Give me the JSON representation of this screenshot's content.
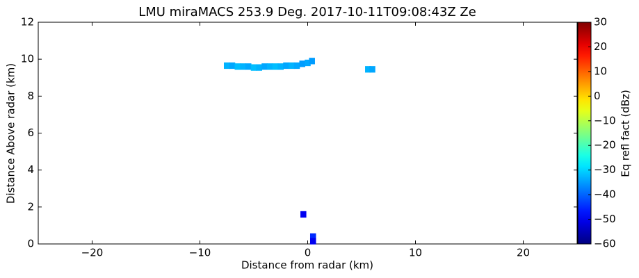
{
  "chart_data": {
    "type": "rhi",
    "title": "LMU miraMACS 253.9 Deg. 2017-10-11T09:08:43Z  Ze",
    "x_label": "Distance from radar (km)",
    "y_label": "Distance Above radar  (km)",
    "colorbar_label": "Eq refl fact (dBz)",
    "colormap": "jet",
    "xlim": [
      -25,
      25
    ],
    "ylim": [
      0,
      12
    ],
    "xticks": [
      {
        "value": -20,
        "label": "−20"
      },
      {
        "value": -10,
        "label": "−10"
      },
      0,
      10,
      20
    ],
    "yticks": [
      0,
      2,
      4,
      6,
      8,
      10,
      12
    ],
    "clim": [
      -60,
      30
    ],
    "cticks": [
      {
        "value": -60,
        "label": "−60"
      },
      {
        "value": -50,
        "label": "−50"
      },
      {
        "value": -40,
        "label": "−40"
      },
      {
        "value": -30,
        "label": "−30"
      },
      {
        "value": -20,
        "label": "−20"
      },
      {
        "value": -10,
        "label": "−10"
      },
      0,
      10,
      20,
      30
    ],
    "x": [
      -7.5,
      -7.0,
      -6.5,
      -6.0,
      -5.5,
      -5.0,
      -4.5,
      -4.0,
      -3.5,
      -3.0,
      -2.5,
      -2.0,
      -1.5,
      -1.0,
      -0.5,
      0.0,
      0.4,
      5.6,
      6.0,
      -0.4,
      0.5,
      0.5
    ],
    "y": [
      9.65,
      9.65,
      9.6,
      9.6,
      9.6,
      9.55,
      9.55,
      9.6,
      9.6,
      9.6,
      9.6,
      9.65,
      9.65,
      9.65,
      9.75,
      9.8,
      9.9,
      9.45,
      9.45,
      1.6,
      0.4,
      0.15
    ],
    "values": [
      -33,
      -34,
      -32,
      -33,
      -34,
      -32,
      -33,
      -34,
      -33,
      -32,
      -33,
      -34,
      -33,
      -34,
      -35,
      -34,
      -35,
      -33,
      -34,
      -50,
      -45,
      -50
    ]
  }
}
